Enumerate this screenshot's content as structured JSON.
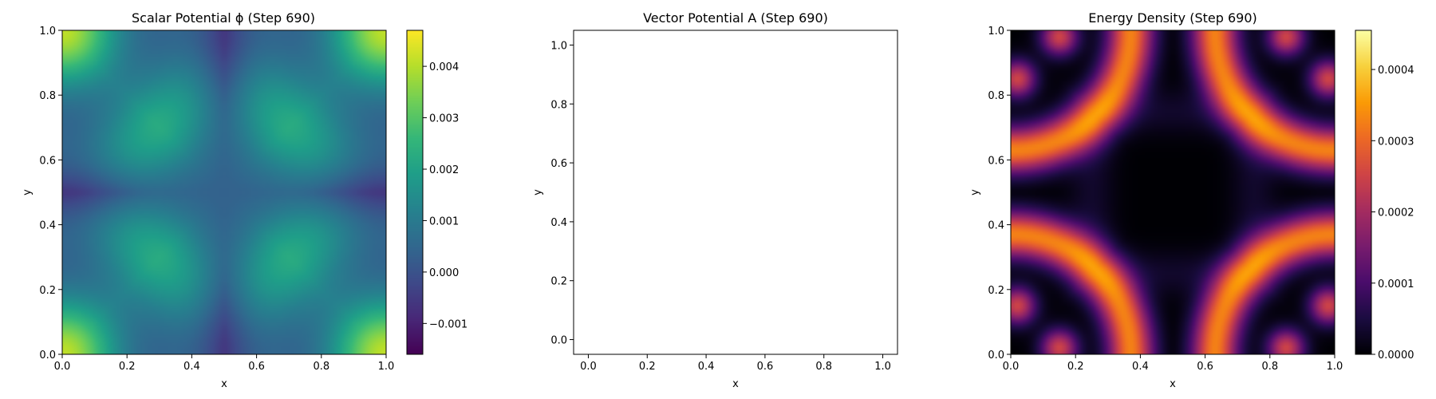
{
  "chart_data": [
    {
      "type": "heatmap",
      "title": "Scalar Potential ϕ (Step 690)",
      "xlabel": "x",
      "ylabel": "y",
      "xlim": [
        0,
        1
      ],
      "ylim": [
        0,
        1
      ],
      "x_ticks": [
        "0.0",
        "0.2",
        "0.4",
        "0.6",
        "0.8",
        "1.0"
      ],
      "y_ticks": [
        "0.0",
        "0.2",
        "0.4",
        "0.6",
        "0.8",
        "1.0"
      ],
      "colormap": "viridis",
      "colorbar": {
        "vmin": -0.0016,
        "vmax": 0.0047,
        "ticks": [
          {
            "value": -0.001,
            "label": "−0.001"
          },
          {
            "value": 0.0,
            "label": "0.000"
          },
          {
            "value": 0.001,
            "label": "0.001"
          },
          {
            "value": 0.002,
            "label": "0.002"
          },
          {
            "value": 0.003,
            "label": "0.003"
          },
          {
            "value": 0.004,
            "label": "0.004"
          }
        ]
      },
      "grid_samples": {
        "corners": 0.0047,
        "edge_midpoints": -0.0016,
        "center": 0.0009,
        "ring_near_corners": 0.0022
      }
    },
    {
      "type": "scatter",
      "title": "Vector Potential A (Step 690)",
      "xlabel": "x",
      "ylabel": "y",
      "xlim": [
        -0.05,
        1.05
      ],
      "ylim": [
        -0.05,
        1.05
      ],
      "x_ticks": [
        "0.0",
        "0.2",
        "0.4",
        "0.6",
        "0.8",
        "1.0"
      ],
      "y_ticks": [
        "0.0",
        "0.2",
        "0.4",
        "0.6",
        "0.8",
        "1.0"
      ],
      "series": []
    },
    {
      "type": "heatmap",
      "title": "Energy Density (Step 690)",
      "xlabel": "x",
      "ylabel": "y",
      "xlim": [
        0,
        1
      ],
      "ylim": [
        0,
        1
      ],
      "x_ticks": [
        "0.0",
        "0.2",
        "0.4",
        "0.6",
        "0.8",
        "1.0"
      ],
      "y_ticks": [
        "0.0",
        "0.2",
        "0.4",
        "0.6",
        "0.8",
        "1.0"
      ],
      "colormap": "inferno",
      "colorbar": {
        "vmin": 0.0,
        "vmax": 0.000455,
        "ticks": [
          {
            "value": 0.0,
            "label": "0.0000"
          },
          {
            "value": 0.0001,
            "label": "0.0001"
          },
          {
            "value": 0.0002,
            "label": "0.0002"
          },
          {
            "value": 0.0003,
            "label": "0.0003"
          },
          {
            "value": 0.0004,
            "label": "0.0004"
          }
        ]
      },
      "grid_samples": {
        "hotspots": 0.000455,
        "ring_band": 0.00025,
        "center": 0.0
      }
    }
  ]
}
